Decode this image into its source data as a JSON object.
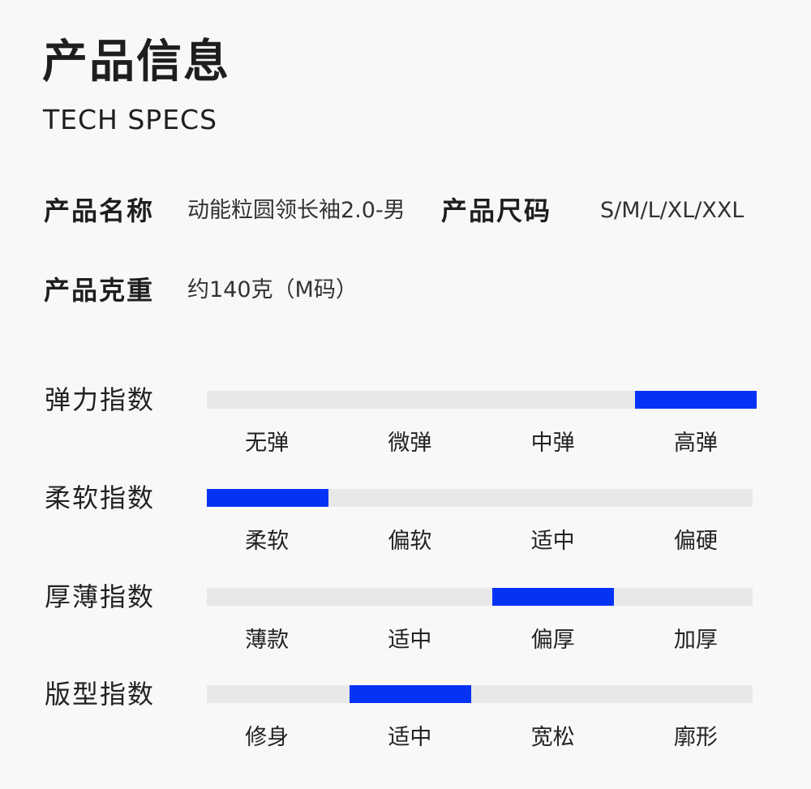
{
  "header": {
    "title": "产品信息",
    "subtitle": "TECH SPECS"
  },
  "specs": [
    {
      "label": "产品名称",
      "value": "动能粒圆领长袖2.0-男"
    },
    {
      "label": "产品尺码",
      "value": "S/M/L/XL/XXL"
    },
    {
      "label": "产品克重",
      "value": "约140克（M码）"
    }
  ],
  "accent_color": "#0433f5",
  "track_color": "#e8e8e8",
  "indices": [
    {
      "label": "弹力指数",
      "scale": [
        "无弹",
        "微弹",
        "中弹",
        "高弹"
      ],
      "selected_level": 4
    },
    {
      "label": "柔软指数",
      "scale": [
        "柔软",
        "偏软",
        "适中",
        "偏硬"
      ],
      "selected_level": 1
    },
    {
      "label": "厚薄指数",
      "scale": [
        "薄款",
        "适中",
        "偏厚",
        "加厚"
      ],
      "selected_level": 3
    },
    {
      "label": "版型指数",
      "scale": [
        "修身",
        "适中",
        "宽松",
        "廓形"
      ],
      "selected_level": 2
    }
  ]
}
